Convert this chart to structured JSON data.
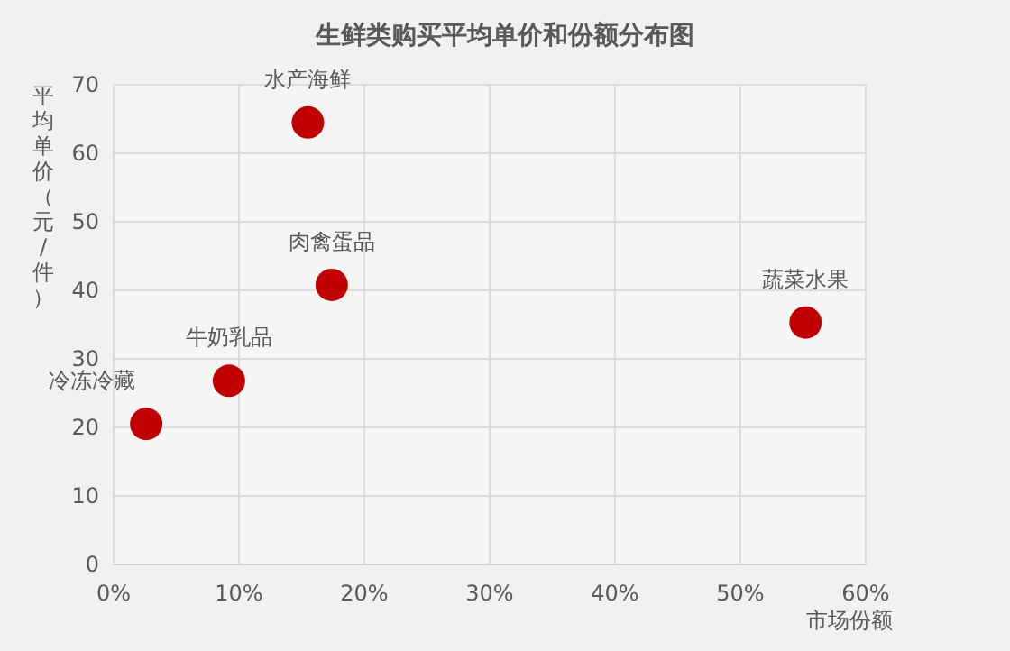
{
  "chart_data": {
    "type": "scatter",
    "title": "生鲜类购买平均单价和份额分布图",
    "xlabel": "市场份额",
    "ylabel": "平均单价（元/件）",
    "series": [
      {
        "color": "#c00000",
        "x": [
          2.6,
          9.2,
          15.5,
          17.4,
          55.2
        ],
        "values": [
          20.5,
          26.8,
          64.5,
          40.8,
          35.3
        ]
      }
    ],
    "marker": "circle",
    "grid": true,
    "xlim": [
      0,
      60
    ],
    "xticks": [
      {
        "value": 0,
        "label": "0%"
      },
      {
        "value": 10,
        "label": "10%"
      },
      {
        "value": 20,
        "label": "20%"
      },
      {
        "value": 30,
        "label": "30%"
      },
      {
        "value": 40,
        "label": "40%"
      },
      {
        "value": 50,
        "label": "50%"
      },
      {
        "value": 60,
        "label": "60%"
      }
    ],
    "ylim": [
      0,
      70
    ],
    "yticks": [
      0,
      10,
      20,
      30,
      40,
      50,
      60,
      70
    ],
    "annotations": [
      {
        "text": "冷冻冷藏",
        "x": 2.6,
        "y": 20.5
      },
      {
        "text": "牛奶乳品",
        "x": 9.2,
        "y": 26.8
      },
      {
        "text": "水产海鲜",
        "x": 15.5,
        "y": 64.5
      },
      {
        "text": "肉禽蛋品",
        "x": 17.4,
        "y": 40.8
      },
      {
        "text": "蔬菜水果",
        "x": 55.2,
        "y": 35.3
      }
    ]
  }
}
